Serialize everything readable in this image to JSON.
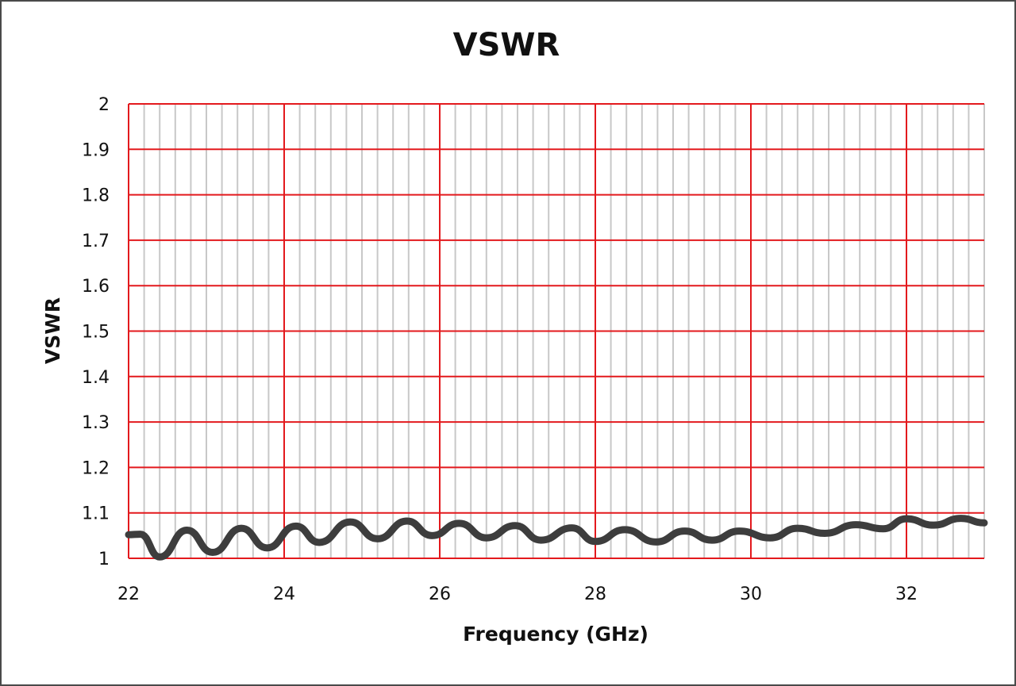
{
  "chart_data": {
    "type": "line",
    "title": "VSWR",
    "xlabel": "Frequency (GHz)",
    "ylabel": "VSWR",
    "xlim": [
      22,
      33
    ],
    "ylim": [
      1,
      2
    ],
    "x_ticks": [
      22,
      24,
      26,
      28,
      30,
      32
    ],
    "x_tick_labels": [
      "22",
      "24",
      "26",
      "28",
      "30",
      "32"
    ],
    "y_ticks": [
      1,
      1.1,
      1.2,
      1.3,
      1.4,
      1.5,
      1.6,
      1.7,
      1.8,
      1.9,
      2
    ],
    "y_tick_labels": [
      "1",
      "1.1",
      "1.2",
      "1.3",
      "1.4",
      "1.5",
      "1.6",
      "1.7",
      "1.8",
      "1.9",
      "2"
    ],
    "grid": "on",
    "grid_major_color": "#e3191d",
    "grid_minor_color": "#c8c8c8",
    "line_color": "#3d3d3d",
    "series": [
      {
        "name": "",
        "color": "#3d3d3d",
        "x": [
          22.0,
          22.15,
          22.4,
          22.75,
          23.08,
          23.45,
          23.78,
          24.15,
          24.45,
          24.85,
          25.2,
          25.58,
          25.9,
          26.25,
          26.6,
          26.97,
          27.3,
          27.7,
          28.0,
          28.38,
          28.78,
          29.15,
          29.5,
          29.85,
          30.25,
          30.6,
          30.95,
          31.35,
          31.7,
          32.0,
          32.35,
          32.7,
          33.0
        ],
        "y": [
          1.052,
          1.053,
          1.003,
          1.062,
          1.013,
          1.066,
          1.023,
          1.071,
          1.035,
          1.08,
          1.043,
          1.082,
          1.05,
          1.077,
          1.045,
          1.072,
          1.04,
          1.067,
          1.037,
          1.063,
          1.036,
          1.06,
          1.04,
          1.06,
          1.045,
          1.066,
          1.055,
          1.074,
          1.065,
          1.087,
          1.073,
          1.088,
          1.078
        ]
      }
    ]
  }
}
